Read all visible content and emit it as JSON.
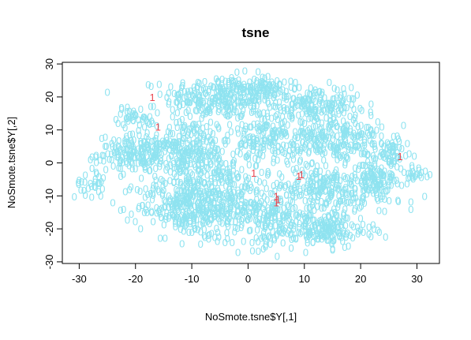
{
  "chart_data": {
    "type": "scatter",
    "title": "tsne",
    "xlabel": "NoSmote.tsne$Y[,1]",
    "ylabel": "NoSmote.tsne$Y[,2]",
    "xlim": [
      -33,
      34
    ],
    "ylim": [
      -30.5,
      30.5
    ],
    "xticks": [
      "-30",
      "-20",
      "-10",
      "0",
      "10",
      "20",
      "30"
    ],
    "yticks": [
      "-30",
      "-20",
      "-10",
      "0",
      "10",
      "20",
      "30"
    ],
    "grid": false,
    "legend": "none",
    "series": [
      {
        "label": "0",
        "color": "#8FE3F0",
        "clusters": [
          {
            "cx": -5,
            "cy": 20,
            "rx": 9,
            "ry": 6,
            "n": 260
          },
          {
            "cx": 3,
            "cy": 23,
            "rx": 4,
            "ry": 3,
            "n": 60
          },
          {
            "cx": -20,
            "cy": 14,
            "rx": 3,
            "ry": 3,
            "n": 40
          },
          {
            "cx": -19,
            "cy": 3,
            "rx": 7,
            "ry": 5,
            "n": 200
          },
          {
            "cx": -28,
            "cy": -6,
            "rx": 2.5,
            "ry": 4,
            "n": 30
          },
          {
            "cx": -10,
            "cy": 3,
            "rx": 6,
            "ry": 10,
            "n": 230
          },
          {
            "cx": -12,
            "cy": -13,
            "rx": 7,
            "ry": 8,
            "n": 220
          },
          {
            "cx": -5,
            "cy": -10,
            "rx": 6,
            "ry": 11,
            "n": 250
          },
          {
            "cx": 3,
            "cy": -15,
            "rx": 5,
            "ry": 9,
            "n": 160
          },
          {
            "cx": 3,
            "cy": 8,
            "rx": 5,
            "ry": 9,
            "n": 150
          },
          {
            "cx": 12,
            "cy": 18,
            "rx": 7,
            "ry": 5,
            "n": 160
          },
          {
            "cx": 15,
            "cy": 7,
            "rx": 8,
            "ry": 7,
            "n": 240
          },
          {
            "cx": 13,
            "cy": -8,
            "rx": 7,
            "ry": 6,
            "n": 180
          },
          {
            "cx": 13,
            "cy": -20,
            "rx": 8,
            "ry": 5,
            "n": 200
          },
          {
            "cx": 23,
            "cy": -5,
            "rx": 6,
            "ry": 7,
            "n": 170
          },
          {
            "cx": 25,
            "cy": 4,
            "rx": 3,
            "ry": 3,
            "n": 40
          },
          {
            "cx": 30,
            "cy": -3,
            "rx": 2,
            "ry": 2,
            "n": 15
          }
        ]
      },
      {
        "label": "1",
        "color": "#E8454F",
        "points": [
          [
            -17,
            20
          ],
          [
            -16,
            11
          ],
          [
            1,
            -3
          ],
          [
            9,
            -4
          ],
          [
            9.5,
            -3.5
          ],
          [
            5,
            -10
          ],
          [
            5.3,
            -11
          ],
          [
            5,
            -12
          ],
          [
            27,
            2
          ]
        ]
      }
    ]
  }
}
